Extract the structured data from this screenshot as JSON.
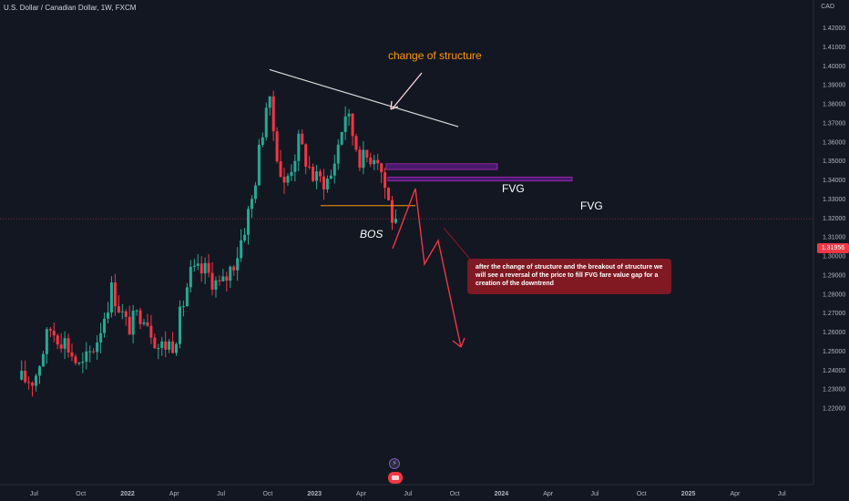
{
  "header": {
    "symbol": "U.S. Dollar / Canadian Dollar, 1W, FXCM",
    "currency": "CAD"
  },
  "price_tag": "1.31956",
  "annotations": {
    "change_of_structure": "change of structure",
    "fvg_upper": "FVG",
    "fvg_lower": "FVG",
    "bos": "BOS",
    "note": "after the change of structure and the breakout of structure we will see a reversal of the price to fill FVG fare value gap for a creation of the downtrend"
  },
  "colors": {
    "background": "#131722",
    "up_candle": "#22ab94",
    "down_candle": "#f23645",
    "annotation_orange": "#ff9800",
    "fvg_fill": "#4a1b6e",
    "fvg_border": "#9c27b0",
    "note_bg": "#801922",
    "projection_arrow": "#f23645"
  },
  "chart_data": {
    "type": "candlestick",
    "symbol": "USDCAD",
    "timeframe": "1W",
    "y_axis": {
      "min": 1.215,
      "max": 1.425,
      "ticks": [
        "1.42000",
        "1.41000",
        "1.40000",
        "1.39000",
        "1.38000",
        "1.37000",
        "1.36000",
        "1.35000",
        "1.34000",
        "1.33000",
        "1.32000",
        "1.31000",
        "1.30000",
        "1.29000",
        "1.28000",
        "1.27000",
        "1.26000",
        "1.25000",
        "1.24000",
        "1.23000",
        "1.22000"
      ]
    },
    "x_axis": {
      "ticks": [
        "Jul",
        "Oct",
        "2022",
        "Apr",
        "Jul",
        "Oct",
        "2023",
        "Apr",
        "Jul",
        "Oct",
        "2024",
        "Apr",
        "Jul",
        "Oct",
        "2025",
        "Apr",
        "Jul"
      ]
    },
    "last_price": 1.31956,
    "price_path": [
      [
        "2021-07",
        1.235
      ],
      [
        "2021-08",
        1.262
      ],
      [
        "2021-09",
        1.255
      ],
      [
        "2021-10",
        1.24
      ],
      [
        "2021-11",
        1.255
      ],
      [
        "2021-12",
        1.283
      ],
      [
        "2022-01",
        1.262
      ],
      [
        "2022-02",
        1.272
      ],
      [
        "2022-03",
        1.252
      ],
      [
        "2022-04",
        1.255
      ],
      [
        "2022-05",
        1.29
      ],
      [
        "2022-06",
        1.292
      ],
      [
        "2022-07",
        1.283
      ],
      [
        "2022-08",
        1.3
      ],
      [
        "2022-09",
        1.33
      ],
      [
        "2022-10",
        1.385
      ],
      [
        "2022-11",
        1.335
      ],
      [
        "2022-12",
        1.36
      ],
      [
        "2023-01",
        1.34
      ],
      [
        "2023-02",
        1.34
      ],
      [
        "2023-03",
        1.376
      ],
      [
        "2023-04",
        1.35
      ],
      [
        "2023-05",
        1.355
      ],
      [
        "2023-06",
        1.32
      ]
    ],
    "annotations": {
      "trendline": {
        "from": [
          "2022-10",
          1.398
        ],
        "to": [
          "2023-10",
          1.368
        ],
        "label": "change of structure"
      },
      "fvg_zones": [
        {
          "label": "FVG",
          "from": 1.3455,
          "to": 1.3485
        },
        {
          "label": "FVG",
          "from": 1.3395,
          "to": 1.3415
        }
      ],
      "bos_level": {
        "label": "BOS",
        "price": 1.3265
      },
      "projection_path": [
        [
          "2023-06",
          1.321
        ],
        [
          "2023-07",
          1.347
        ],
        [
          "2023-07",
          1.3245
        ],
        [
          "2023-08",
          1.333
        ],
        [
          "2023-09",
          1.27
        ]
      ]
    }
  }
}
